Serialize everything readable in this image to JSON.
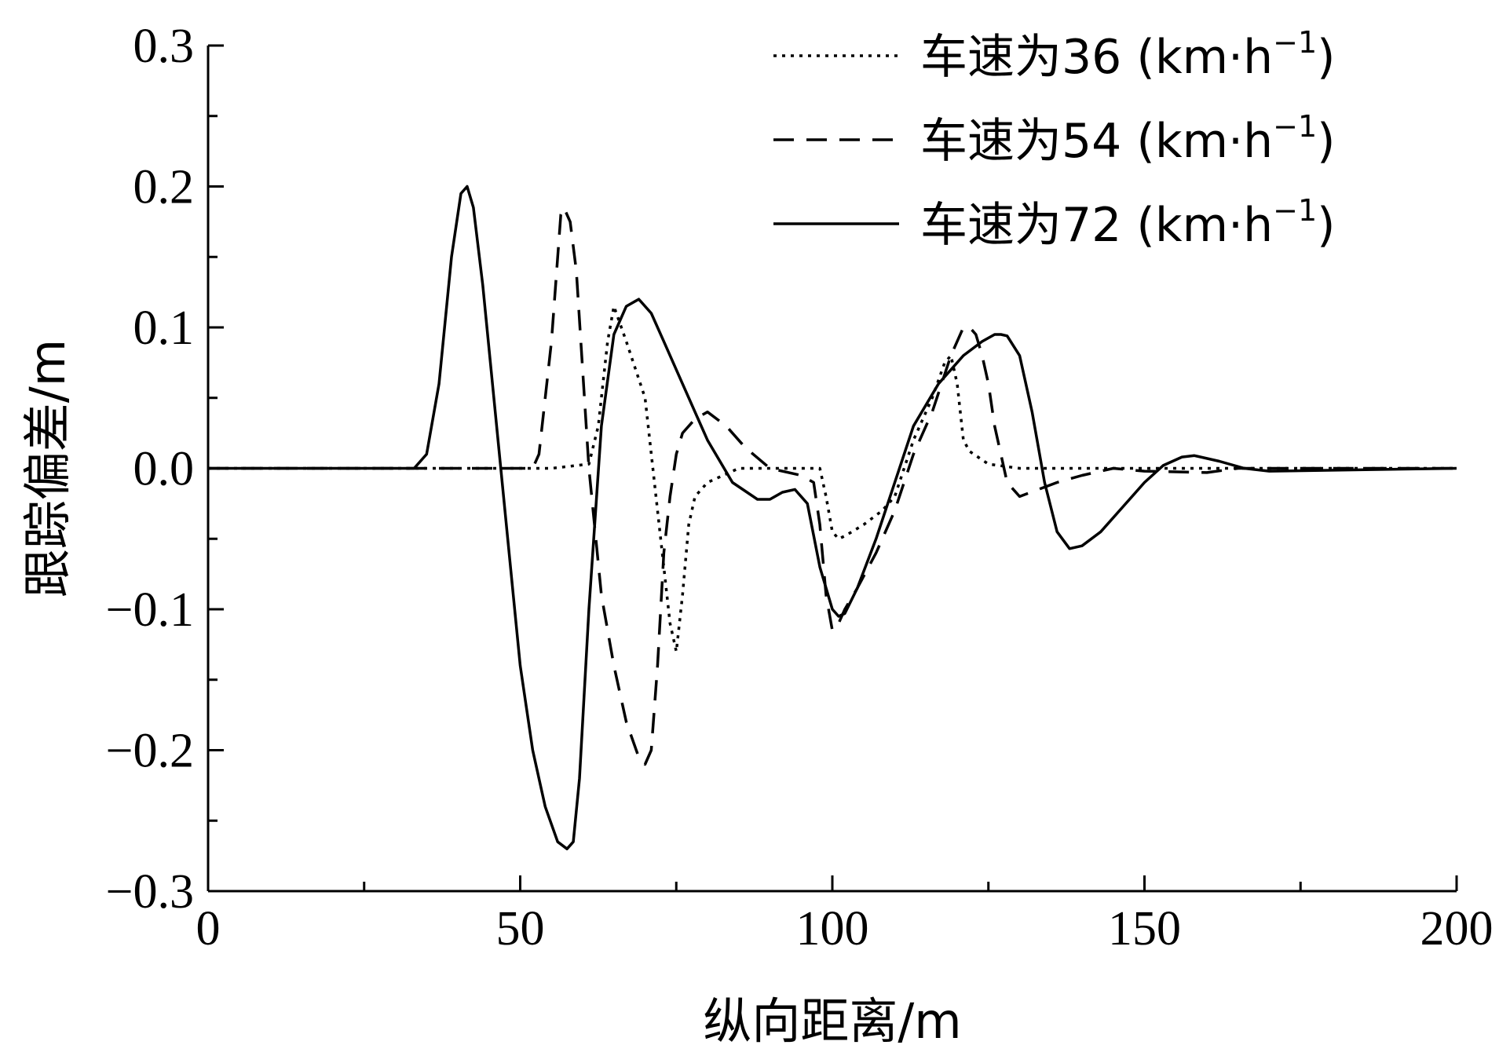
{
  "chart_data": {
    "type": "line",
    "xlabel": "纵向距离/m",
    "ylabel": "跟踪偏差/m",
    "xlim": [
      0,
      200
    ],
    "ylim": [
      -0.3,
      0.3
    ],
    "x_ticks": [
      "0",
      "50",
      "100",
      "150",
      "200"
    ],
    "y_ticks": [
      "0.3",
      "0.2",
      "0.1",
      "0.0",
      "−0.1",
      "−0.2",
      "−0.3"
    ],
    "grid": false,
    "legend_position": "top-right",
    "series": [
      {
        "name": "车速为36 (km·h⁻¹)",
        "label_main": "车速为36 (km·h",
        "label_sup": "−1",
        "label_end": ")",
        "style": "dotted",
        "x": [
          0,
          55,
          61,
          62.5,
          64,
          65,
          67,
          70,
          72,
          74,
          75,
          76,
          77,
          78,
          80,
          85,
          90,
          95,
          98,
          99,
          100,
          101,
          102,
          105,
          108,
          110,
          113,
          116,
          118,
          119,
          120,
          121,
          122,
          125,
          130,
          200
        ],
        "y": [
          0,
          0,
          0.003,
          0.03,
          0.09,
          0.115,
          0.09,
          0.05,
          -0.03,
          -0.11,
          -0.13,
          -0.09,
          -0.04,
          -0.02,
          -0.01,
          0,
          0,
          0,
          0,
          -0.02,
          -0.045,
          -0.05,
          -0.048,
          -0.04,
          -0.03,
          -0.02,
          0.02,
          0.05,
          0.075,
          0.08,
          0.06,
          0.02,
          0.012,
          0.003,
          0,
          0
        ]
      },
      {
        "name": "车速为54 (km·h⁻¹)",
        "label_main": "车速为54 (km·h",
        "label_sup": "−1",
        "label_end": ")",
        "style": "dashed",
        "x": [
          0,
          52,
          53,
          55,
          56.5,
          57,
          58,
          59,
          60,
          61,
          63,
          65,
          67,
          69,
          70,
          71,
          72,
          73,
          74,
          75,
          76,
          78,
          80,
          83,
          86,
          90,
          95,
          97,
          98,
          99,
          100,
          101,
          102,
          104,
          107,
          110,
          113,
          116,
          119,
          121,
          122,
          123,
          124,
          125,
          126,
          128,
          130,
          133,
          136,
          140,
          145,
          150,
          160,
          165,
          200
        ],
        "y": [
          0,
          0,
          0.01,
          0.09,
          0.18,
          0.185,
          0.175,
          0.14,
          0.07,
          0.0,
          -0.09,
          -0.14,
          -0.18,
          -0.205,
          -0.21,
          -0.2,
          -0.14,
          -0.06,
          -0.02,
          0.01,
          0.025,
          0.035,
          0.04,
          0.03,
          0.015,
          0.0,
          -0.005,
          -0.01,
          -0.04,
          -0.09,
          -0.115,
          -0.11,
          -0.1,
          -0.085,
          -0.06,
          -0.03,
          0.01,
          0.04,
          0.08,
          0.1,
          0.1,
          0.095,
          0.08,
          0.06,
          0.03,
          -0.01,
          -0.02,
          -0.015,
          -0.01,
          -0.005,
          0.0,
          -0.002,
          -0.003,
          0,
          0
        ]
      },
      {
        "name": "车速为72 (km·h⁻¹)",
        "label_main": "车速为72 (km·h",
        "label_sup": "−1",
        "label_end": ")",
        "style": "solid",
        "x": [
          0,
          33,
          35,
          37,
          39,
          40.5,
          41.5,
          42.5,
          44,
          46,
          48,
          50,
          52,
          54,
          56,
          57.5,
          58.5,
          59.5,
          61,
          63,
          65,
          67,
          69,
          71,
          73,
          76,
          80,
          84,
          88,
          90,
          92,
          94,
          96,
          98,
          100,
          101,
          102,
          104,
          107,
          110,
          113,
          117,
          121,
          124,
          126,
          127,
          128,
          130,
          132,
          134,
          136,
          138,
          140,
          143,
          147,
          150,
          153,
          156,
          158,
          162,
          166,
          170,
          200
        ],
        "y": [
          0,
          0,
          0.01,
          0.06,
          0.15,
          0.195,
          0.2,
          0.185,
          0.13,
          0.04,
          -0.05,
          -0.14,
          -0.2,
          -0.24,
          -0.265,
          -0.27,
          -0.265,
          -0.22,
          -0.1,
          0.03,
          0.095,
          0.115,
          0.12,
          0.11,
          0.09,
          0.06,
          0.02,
          -0.01,
          -0.022,
          -0.022,
          -0.017,
          -0.015,
          -0.025,
          -0.07,
          -0.1,
          -0.105,
          -0.103,
          -0.085,
          -0.05,
          -0.01,
          0.03,
          0.06,
          0.08,
          0.09,
          0.095,
          0.095,
          0.094,
          0.08,
          0.04,
          -0.01,
          -0.045,
          -0.057,
          -0.055,
          -0.045,
          -0.025,
          -0.01,
          0.002,
          0.008,
          0.009,
          0.005,
          0.0,
          -0.002,
          0
        ]
      }
    ]
  }
}
